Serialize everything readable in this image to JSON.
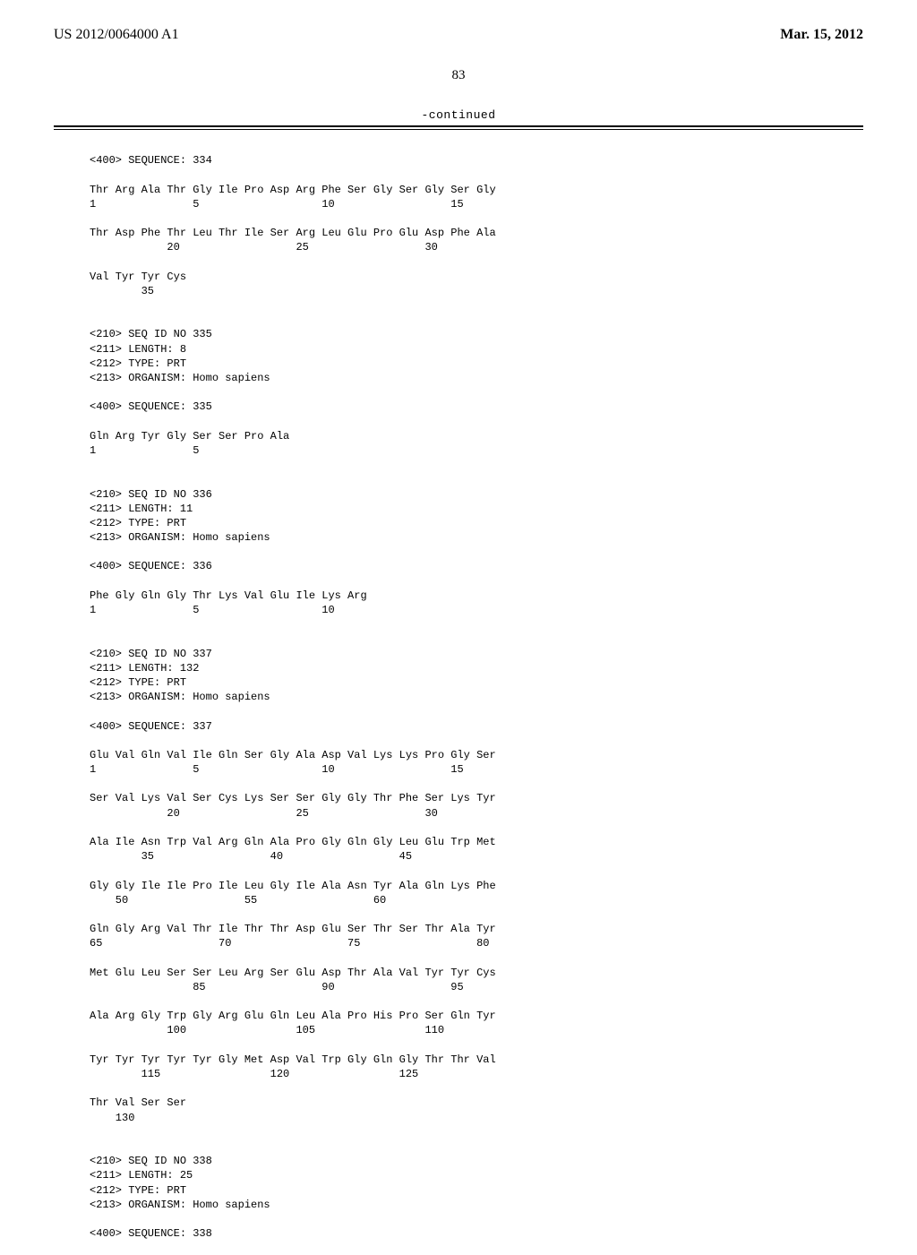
{
  "header": {
    "left": "US 2012/0064000 A1",
    "right": "Mar. 15, 2012"
  },
  "page_number": "83",
  "continued_label": "-continued",
  "sequences": [
    {
      "header": "<400> SEQUENCE: 334",
      "lines": [
        "Thr Arg Ala Thr Gly Ile Pro Asp Arg Phe Ser Gly Ser Gly Ser Gly",
        "1               5                   10                  15",
        "",
        "Thr Asp Phe Thr Leu Thr Ile Ser Arg Leu Glu Pro Glu Asp Phe Ala",
        "            20                  25                  30",
        "",
        "Val Tyr Tyr Cys",
        "        35"
      ]
    },
    {
      "meta": [
        "<210> SEQ ID NO 335",
        "<211> LENGTH: 8",
        "<212> TYPE: PRT",
        "<213> ORGANISM: Homo sapiens"
      ],
      "header": "<400> SEQUENCE: 335",
      "lines": [
        "Gln Arg Tyr Gly Ser Ser Pro Ala",
        "1               5"
      ]
    },
    {
      "meta": [
        "<210> SEQ ID NO 336",
        "<211> LENGTH: 11",
        "<212> TYPE: PRT",
        "<213> ORGANISM: Homo sapiens"
      ],
      "header": "<400> SEQUENCE: 336",
      "lines": [
        "Phe Gly Gln Gly Thr Lys Val Glu Ile Lys Arg",
        "1               5                   10"
      ]
    },
    {
      "meta": [
        "<210> SEQ ID NO 337",
        "<211> LENGTH: 132",
        "<212> TYPE: PRT",
        "<213> ORGANISM: Homo sapiens"
      ],
      "header": "<400> SEQUENCE: 337",
      "lines": [
        "Glu Val Gln Val Ile Gln Ser Gly Ala Asp Val Lys Lys Pro Gly Ser",
        "1               5                   10                  15",
        "",
        "Ser Val Lys Val Ser Cys Lys Ser Ser Gly Gly Thr Phe Ser Lys Tyr",
        "            20                  25                  30",
        "",
        "Ala Ile Asn Trp Val Arg Gln Ala Pro Gly Gln Gly Leu Glu Trp Met",
        "        35                  40                  45",
        "",
        "Gly Gly Ile Ile Pro Ile Leu Gly Ile Ala Asn Tyr Ala Gln Lys Phe",
        "    50                  55                  60",
        "",
        "Gln Gly Arg Val Thr Ile Thr Thr Asp Glu Ser Thr Ser Thr Ala Tyr",
        "65                  70                  75                  80",
        "",
        "Met Glu Leu Ser Ser Leu Arg Ser Glu Asp Thr Ala Val Tyr Tyr Cys",
        "                85                  90                  95",
        "",
        "Ala Arg Gly Trp Gly Arg Glu Gln Leu Ala Pro His Pro Ser Gln Tyr",
        "            100                 105                 110",
        "",
        "Tyr Tyr Tyr Tyr Tyr Gly Met Asp Val Trp Gly Gln Gly Thr Thr Val",
        "        115                 120                 125",
        "",
        "Thr Val Ser Ser",
        "    130"
      ]
    },
    {
      "meta": [
        "<210> SEQ ID NO 338",
        "<211> LENGTH: 25",
        "<212> TYPE: PRT",
        "<213> ORGANISM: Homo sapiens"
      ],
      "header": "<400> SEQUENCE: 338",
      "lines": []
    }
  ]
}
